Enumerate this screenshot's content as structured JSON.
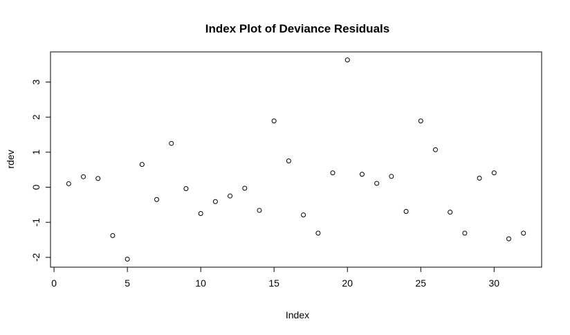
{
  "chart_data": {
    "type": "scatter",
    "title": "Index Plot of Deviance Residuals",
    "x_label": "Index",
    "y_label": "rdev",
    "x": [
      1,
      2,
      3,
      4,
      5,
      6,
      7,
      8,
      9,
      10,
      11,
      12,
      13,
      14,
      15,
      16,
      17,
      18,
      19,
      20,
      21,
      22,
      23,
      24,
      25,
      26,
      27,
      28,
      29,
      30,
      31,
      32
    ],
    "values": [
      0.1,
      0.3,
      0.25,
      -1.38,
      -2.05,
      0.65,
      -0.35,
      1.25,
      -0.04,
      -0.75,
      -0.41,
      -0.25,
      -0.03,
      -0.66,
      1.89,
      0.75,
      -0.79,
      -1.31,
      0.41,
      3.63,
      0.37,
      0.11,
      0.31,
      -0.69,
      1.89,
      1.07,
      -0.71,
      -1.31,
      0.26,
      0.41,
      -1.47,
      -1.31
    ],
    "color": "#000000",
    "xlim": [
      -0.24,
      33.24
    ],
    "xticks": [
      0,
      5,
      10,
      15,
      20,
      25,
      30
    ],
    "ylim": [
      -2.28,
      3.86
    ],
    "yticks": [
      -2,
      -1,
      0,
      1,
      2,
      3
    ]
  }
}
